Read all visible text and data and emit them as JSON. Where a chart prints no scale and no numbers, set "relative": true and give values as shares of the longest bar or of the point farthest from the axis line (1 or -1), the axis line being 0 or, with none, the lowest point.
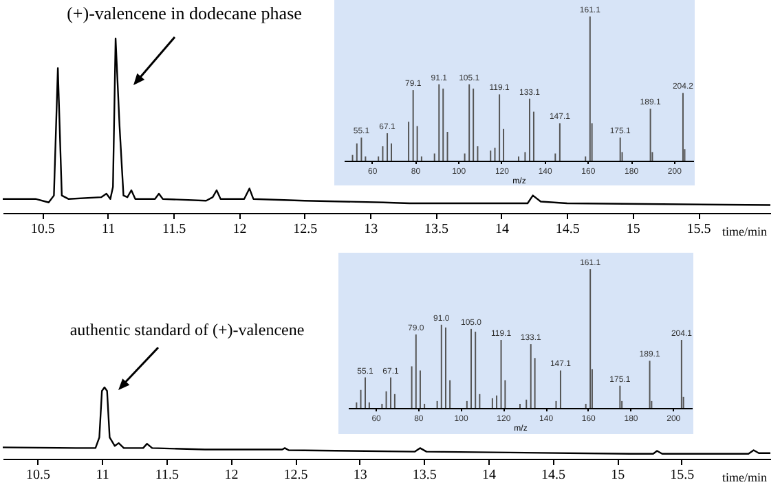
{
  "chart_data": [
    {
      "type": "line",
      "relative": true,
      "xlabel": "time/min",
      "xlim": [
        10.2,
        16.05
      ],
      "xticks": [
        10.5,
        11,
        11.5,
        12,
        12.5,
        13,
        13.5,
        14,
        14.5,
        15,
        15.5
      ],
      "tick_labels": "x",
      "color": "#000000",
      "annotations": [
        "(+)-valencene in dodecane phase"
      ],
      "x": [
        10.2,
        10.45,
        10.55,
        10.59,
        10.62,
        10.65,
        10.7,
        10.95,
        10.99,
        11.02,
        11.04,
        11.06,
        11.09,
        11.12,
        11.15,
        11.18,
        11.21,
        11.36,
        11.39,
        11.42,
        11.75,
        11.8,
        11.83,
        11.86,
        12.04,
        12.08,
        12.11,
        12.5,
        13.1,
        13.3,
        14.2,
        14.24,
        14.3,
        14.5,
        16.05
      ],
      "values": [
        0.08,
        0.08,
        0.06,
        0.1,
        0.83,
        0.1,
        0.08,
        0.09,
        0.11,
        0.08,
        0.15,
        1.0,
        0.5,
        0.1,
        0.09,
        0.13,
        0.08,
        0.08,
        0.11,
        0.08,
        0.07,
        0.09,
        0.13,
        0.08,
        0.08,
        0.14,
        0.08,
        0.07,
        0.06,
        0.055,
        0.055,
        0.1,
        0.065,
        0.055,
        0.045
      ]
    },
    {
      "type": "bar",
      "relative": true,
      "xlabel": "m/z",
      "xlim": [
        47,
        209
      ],
      "xticks": [
        60,
        80,
        100,
        120,
        140,
        160,
        180,
        200
      ],
      "tick_labels": "x",
      "color": "#555555",
      "x": [
        51,
        53,
        55.1,
        57,
        63,
        65,
        67.1,
        69,
        77,
        79.1,
        81,
        83,
        89,
        91.1,
        93,
        95,
        103,
        105.1,
        107,
        109,
        115,
        117,
        119.1,
        121,
        128,
        131,
        133.1,
        135,
        145,
        147.1,
        159,
        161.1,
        162,
        175.1,
        176,
        189.1,
        190,
        204.2,
        205
      ],
      "values": [
        0.04,
        0.12,
        0.16,
        0.03,
        0.03,
        0.1,
        0.19,
        0.12,
        0.27,
        0.49,
        0.24,
        0.03,
        0.05,
        0.53,
        0.5,
        0.2,
        0.05,
        0.53,
        0.5,
        0.1,
        0.07,
        0.09,
        0.46,
        0.22,
        0.03,
        0.06,
        0.43,
        0.34,
        0.05,
        0.26,
        0.03,
        1.0,
        0.26,
        0.16,
        0.06,
        0.36,
        0.06,
        0.47,
        0.08
      ],
      "annotations": [
        {
          "text": "55.1",
          "x": 55.1,
          "y": 0.16
        },
        {
          "text": "67.1",
          "x": 67.1,
          "y": 0.19
        },
        {
          "text": "79.1",
          "x": 79.1,
          "y": 0.49
        },
        {
          "text": "91.1",
          "x": 91.1,
          "y": 0.53
        },
        {
          "text": "105.1",
          "x": 105.1,
          "y": 0.53
        },
        {
          "text": "119.1",
          "x": 119.1,
          "y": 0.46
        },
        {
          "text": "133.1",
          "x": 133.1,
          "y": 0.43
        },
        {
          "text": "147.1",
          "x": 147.1,
          "y": 0.26
        },
        {
          "text": "161.1",
          "x": 161.1,
          "y": 1.0
        },
        {
          "text": "175.1",
          "x": 175.1,
          "y": 0.16
        },
        {
          "text": "189.1",
          "x": 189.1,
          "y": 0.36
        },
        {
          "text": "204.2",
          "x": 204.2,
          "y": 0.47
        }
      ]
    },
    {
      "type": "line",
      "relative": true,
      "xlabel": "time/min",
      "xlim": [
        10.23,
        16.19
      ],
      "xticks": [
        10.5,
        11,
        11.5,
        12,
        12.5,
        13,
        13.5,
        14,
        14.5,
        15,
        15.5
      ],
      "tick_labels": "x",
      "color": "#000000",
      "annotations": [
        "authentic standard of (+)-valencene"
      ],
      "x": [
        10.23,
        10.8,
        10.95,
        10.98,
        11.0,
        11.02,
        11.04,
        11.06,
        11.1,
        11.13,
        11.17,
        11.32,
        11.35,
        11.39,
        11.8,
        12.4,
        12.42,
        12.45,
        13.43,
        13.47,
        13.52,
        15.1,
        15.28,
        15.31,
        15.35,
        16.02,
        16.06,
        16.1,
        16.19
      ],
      "values": [
        0.16,
        0.15,
        0.15,
        0.3,
        0.95,
        1.0,
        0.95,
        0.3,
        0.18,
        0.22,
        0.15,
        0.15,
        0.21,
        0.15,
        0.13,
        0.13,
        0.15,
        0.12,
        0.1,
        0.15,
        0.1,
        0.07,
        0.07,
        0.11,
        0.07,
        0.07,
        0.12,
        0.08,
        0.08
      ]
    },
    {
      "type": "bar",
      "relative": true,
      "xlabel": "m/z",
      "xlim": [
        47,
        209
      ],
      "xticks": [
        60,
        80,
        100,
        120,
        140,
        160,
        180,
        200
      ],
      "tick_labels": "x",
      "color": "#555555",
      "x": [
        51,
        53,
        55.1,
        57,
        63,
        65,
        67.1,
        69,
        77,
        79.0,
        81,
        83,
        89,
        91.0,
        93,
        95,
        103,
        105.0,
        107,
        109,
        115,
        117,
        119.1,
        121,
        128,
        131,
        133.1,
        135,
        145,
        147.1,
        159,
        161.1,
        162,
        175.1,
        176,
        189.1,
        190,
        204.1,
        205
      ],
      "values": [
        0.04,
        0.13,
        0.22,
        0.04,
        0.03,
        0.12,
        0.22,
        0.1,
        0.3,
        0.53,
        0.27,
        0.03,
        0.05,
        0.6,
        0.58,
        0.2,
        0.05,
        0.57,
        0.55,
        0.1,
        0.07,
        0.09,
        0.49,
        0.2,
        0.03,
        0.06,
        0.46,
        0.36,
        0.05,
        0.27,
        0.03,
        1.0,
        0.28,
        0.16,
        0.05,
        0.34,
        0.05,
        0.49,
        0.08
      ],
      "annotations": [
        {
          "text": "55.1",
          "x": 55.1,
          "y": 0.22
        },
        {
          "text": "67.1",
          "x": 67.1,
          "y": 0.22
        },
        {
          "text": "79.0",
          "x": 79.0,
          "y": 0.53
        },
        {
          "text": "91.0",
          "x": 91.0,
          "y": 0.6
        },
        {
          "text": "105.0",
          "x": 105.0,
          "y": 0.57
        },
        {
          "text": "119.1",
          "x": 119.1,
          "y": 0.49
        },
        {
          "text": "133.1",
          "x": 133.1,
          "y": 0.46
        },
        {
          "text": "147.1",
          "x": 147.1,
          "y": 0.27
        },
        {
          "text": "161.1",
          "x": 161.1,
          "y": 1.0
        },
        {
          "text": "175.1",
          "x": 175.1,
          "y": 0.16
        },
        {
          "text": "189.1",
          "x": 189.1,
          "y": 0.34
        },
        {
          "text": "204.1",
          "x": 204.1,
          "y": 0.49
        }
      ]
    }
  ]
}
